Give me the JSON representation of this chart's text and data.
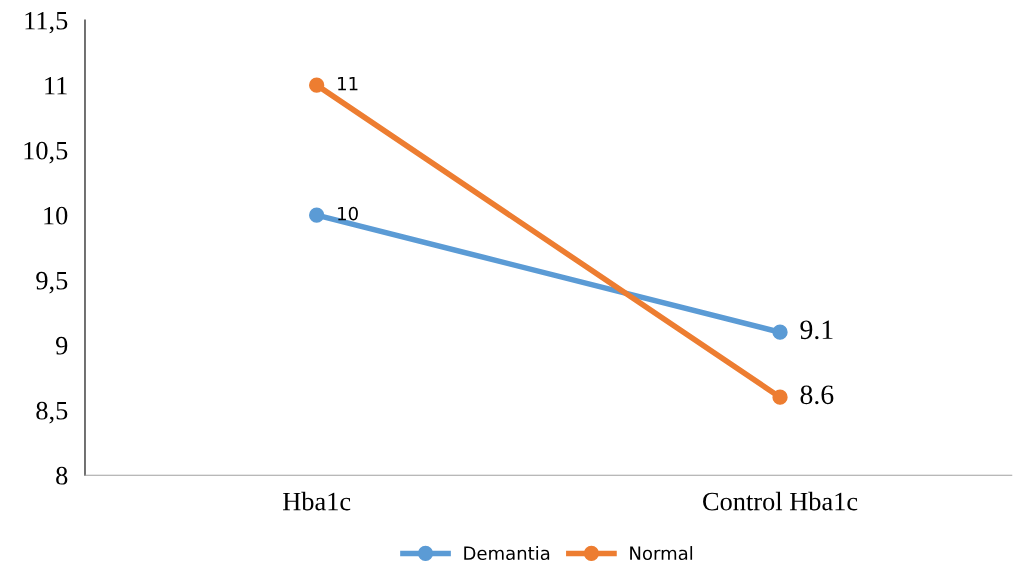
{
  "chart_data": {
    "type": "line",
    "categories": [
      "Hba1c",
      "Control Hba1c"
    ],
    "series": [
      {
        "name": "Demantia",
        "color": "#5b9bd5",
        "values": [
          10,
          9.1
        ]
      },
      {
        "name": "Normal",
        "color": "#ed7d31",
        "values": [
          11,
          8.6
        ]
      }
    ],
    "ylim": [
      8,
      11.5
    ],
    "yticks": [
      8,
      {
        "value": 8.5,
        "label": "8,5"
      },
      9,
      {
        "value": 9.5,
        "label": "9,5"
      },
      10,
      {
        "value": 10.5,
        "label": "10,5"
      },
      11,
      {
        "value": 11.5,
        "label": "11,5"
      }
    ],
    "grid": false,
    "legend": "bottom",
    "marker": "circle",
    "line_style": "solid",
    "data_labels": true
  }
}
